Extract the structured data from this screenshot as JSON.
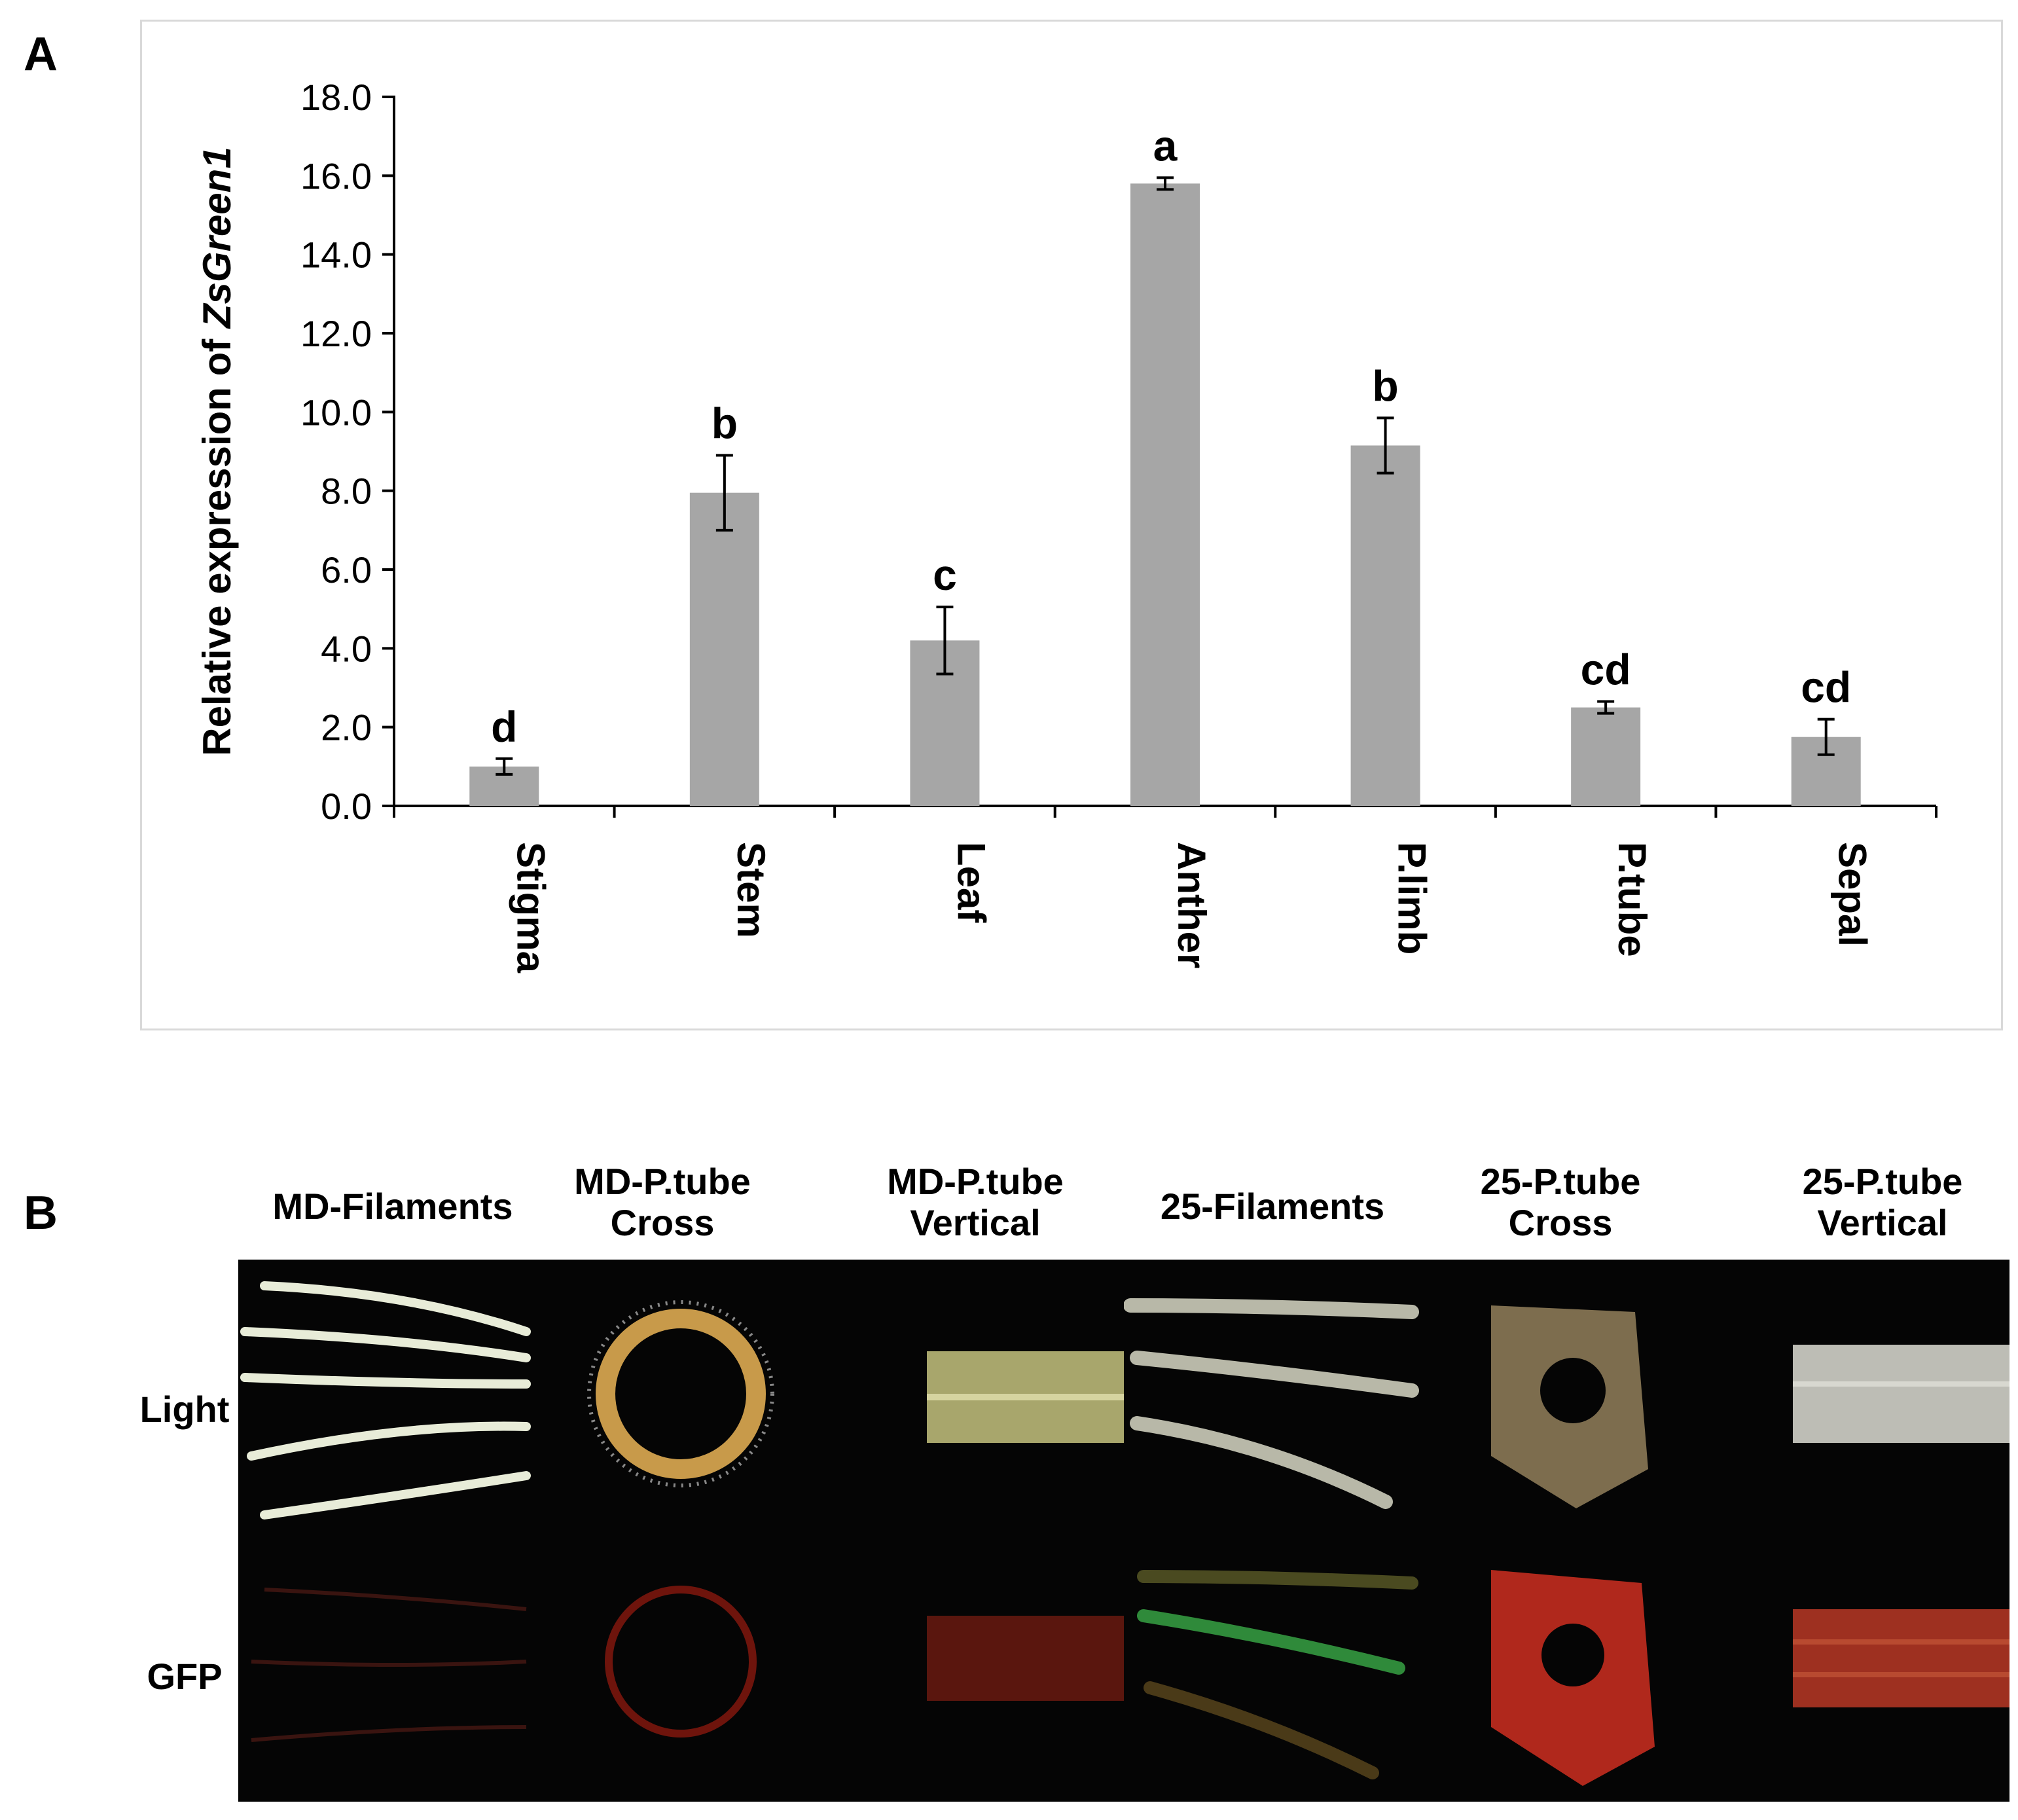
{
  "panel_a_label": "A",
  "panel_b_label": "B",
  "chart_data": {
    "type": "bar",
    "categories": [
      "Stigma",
      "Stem",
      "Leaf",
      "Anther",
      "P.limb",
      "P.tube",
      "Sepal"
    ],
    "values": [
      1.0,
      7.95,
      4.2,
      15.8,
      9.15,
      2.5,
      1.75
    ],
    "errors": [
      0.2,
      0.95,
      0.85,
      0.15,
      0.7,
      0.15,
      0.45
    ],
    "significance_letters": [
      "d",
      "b",
      "c",
      "a",
      "b",
      "cd",
      "cd"
    ],
    "ylabel_prefix": "Relative expression of ",
    "ylabel_gene": "ZsGreen1",
    "ylim": [
      0,
      18
    ],
    "yticks": [
      0,
      2,
      4,
      6,
      8,
      10,
      12,
      14,
      16,
      18
    ],
    "ytick_labels": [
      "0.0",
      "2.0",
      "4.0",
      "6.0",
      "8.0",
      "10.0",
      "12.0",
      "14.0",
      "16.0",
      "18.0"
    ],
    "bar_color": "#a6a6a6",
    "grid": false,
    "legend": "none"
  },
  "panel_b": {
    "columns": [
      {
        "line1": "MD-Filaments",
        "line2": ""
      },
      {
        "line1": "MD-P.tube",
        "line2": "Cross"
      },
      {
        "line1": "MD-P.tube",
        "line2": "Vertical"
      },
      {
        "line1": "25-Filaments",
        "line2": ""
      },
      {
        "line1": "25-P.tube",
        "line2": "Cross"
      },
      {
        "line1": "25-P.tube",
        "line2": "Vertical"
      }
    ],
    "rows": [
      "Light",
      "GFP"
    ]
  }
}
